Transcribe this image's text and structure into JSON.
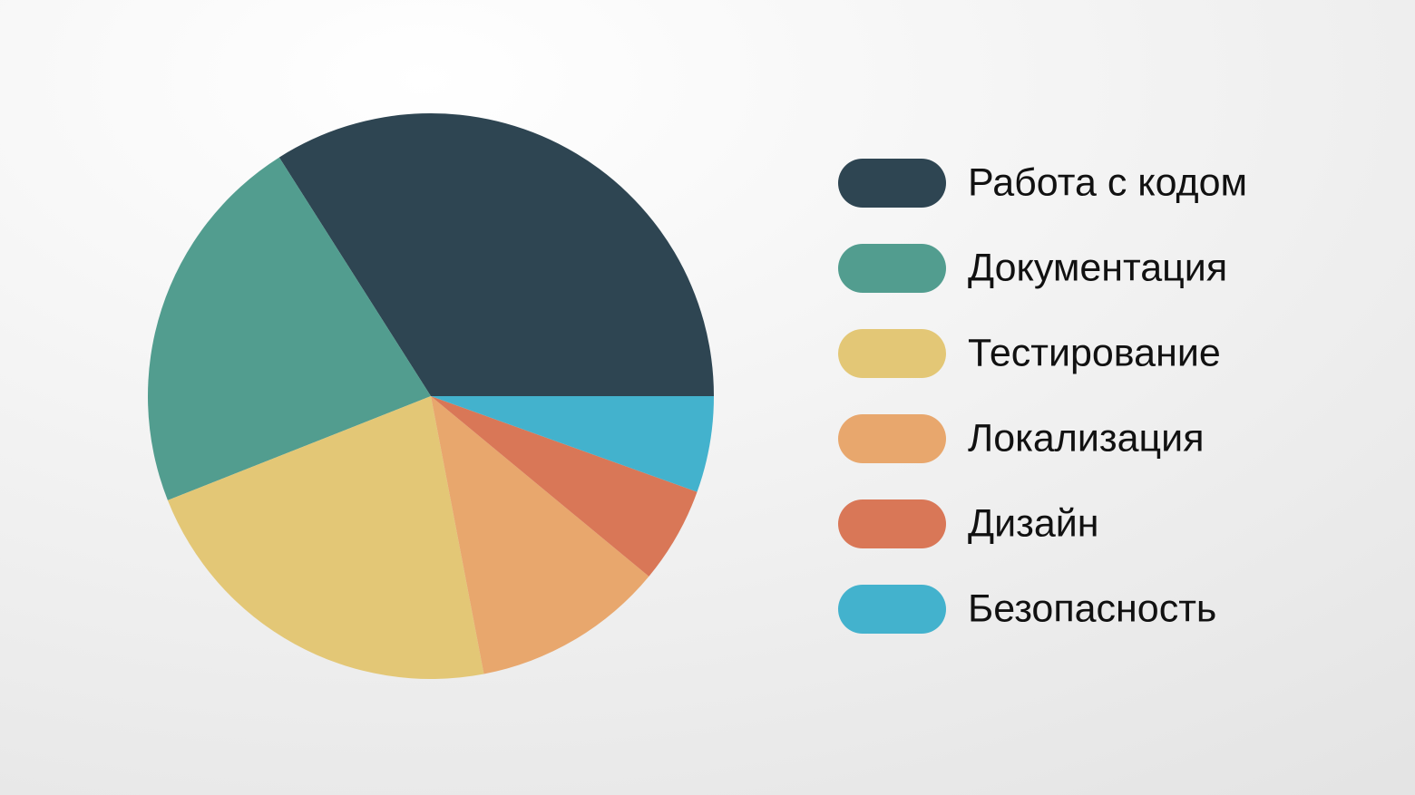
{
  "chart_data": {
    "type": "pie",
    "categories": [
      "Работа с кодом",
      "Документация",
      "Тестирование",
      "Локализация",
      "Дизайн",
      "Безопасность"
    ],
    "values": [
      34,
      22,
      22,
      11,
      5.5,
      5.5
    ],
    "colors": [
      "#2e4552",
      "#529d8f",
      "#e3c776",
      "#e8a76d",
      "#d97757",
      "#43b2cd"
    ],
    "legend": "right"
  }
}
